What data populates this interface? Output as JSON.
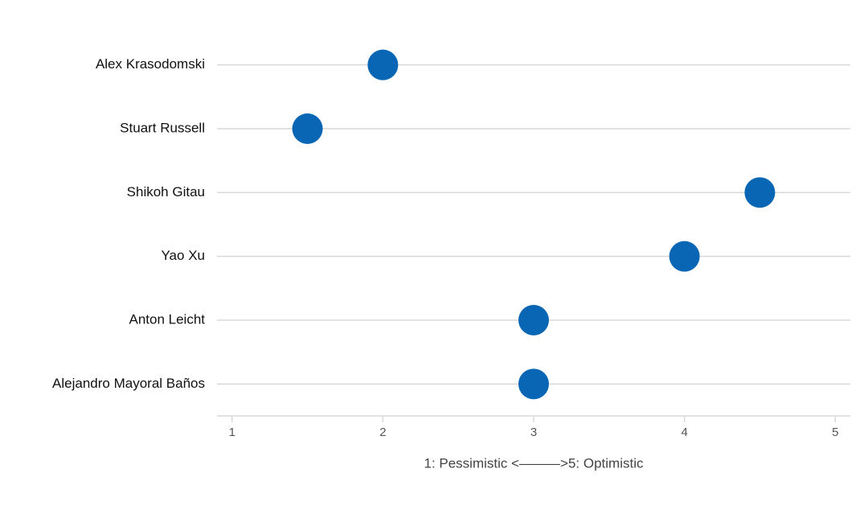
{
  "chart_data": {
    "type": "dot",
    "categories": [
      "Alex Krasodomski",
      "Stuart Russell",
      "Shikoh Gitau",
      "Yao Xu",
      "Anton Leicht",
      "Alejandro Mayoral Baños"
    ],
    "values": [
      2,
      1.5,
      4.5,
      4,
      3,
      3
    ],
    "color": "#0866b4",
    "xlabel": "1: Pessimistic <———>5: Optimistic",
    "xlim": [
      0.9,
      5.1
    ],
    "xticks": [
      1,
      2,
      3,
      4,
      5
    ],
    "grid": true
  }
}
